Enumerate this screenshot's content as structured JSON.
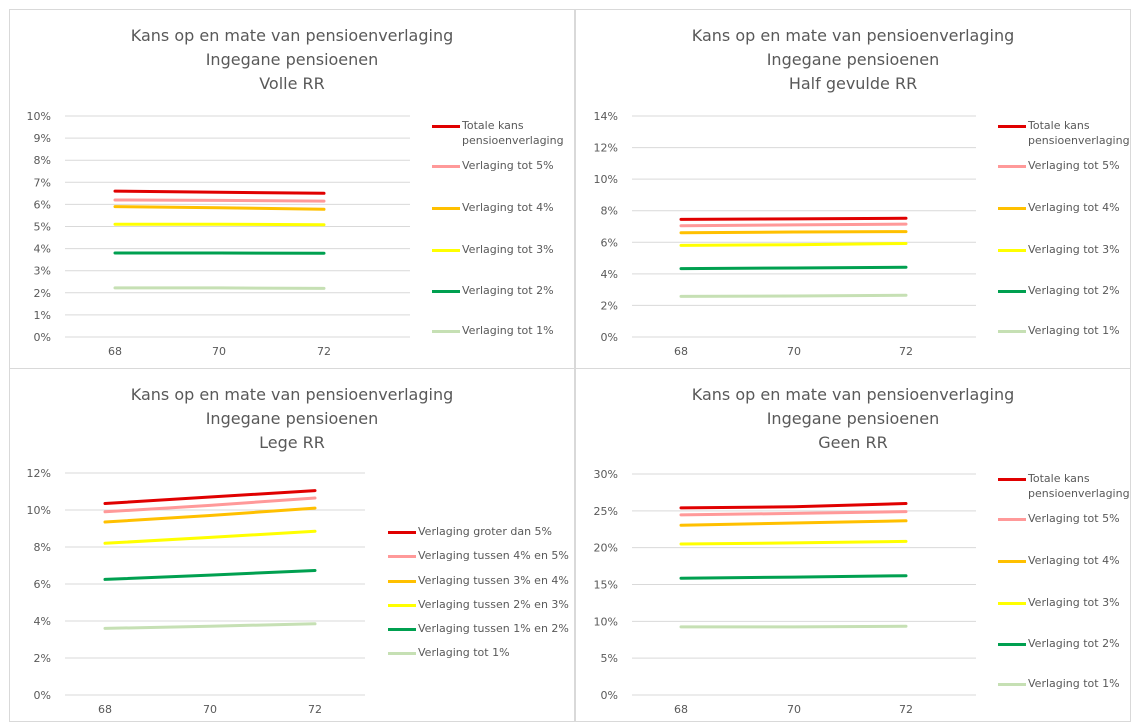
{
  "chart_data": [
    {
      "type": "line",
      "title": [
        "Kans op en mate van pensioenverlaging",
        "Ingegane pensioenen",
        "Volle RR"
      ],
      "x": [
        "68",
        "70",
        "72"
      ],
      "ylim": [
        0,
        0.1
      ],
      "yticks": [
        "0%",
        "1%",
        "2%",
        "3%",
        "4%",
        "5%",
        "6%",
        "7%",
        "8%",
        "9%",
        "10%"
      ],
      "grid": true,
      "legend": "right",
      "series": [
        {
          "name": "Totale kans pensioenverlaging",
          "color": "#e00000",
          "values": [
            0.066,
            0.0655,
            0.065
          ]
        },
        {
          "name": "Verlaging tot 5%",
          "color": "#ff9999",
          "values": [
            0.062,
            0.0618,
            0.0615
          ]
        },
        {
          "name": "Verlaging tot 4%",
          "color": "#ffc000",
          "values": [
            0.059,
            0.0585,
            0.0578
          ]
        },
        {
          "name": "Verlaging tot 3%",
          "color": "#ffff00",
          "values": [
            0.051,
            0.051,
            0.0508
          ]
        },
        {
          "name": "Verlaging tot 2%",
          "color": "#00a050",
          "values": [
            0.038,
            0.038,
            0.0379
          ]
        },
        {
          "name": "Verlaging tot 1%",
          "color": "#c6e0b4",
          "values": [
            0.0222,
            0.0222,
            0.022
          ]
        }
      ]
    },
    {
      "type": "line",
      "title": [
        "Kans op en mate van pensioenverlaging",
        "Ingegane pensioenen",
        "Half gevulde RR"
      ],
      "x": [
        "68",
        "70",
        "72"
      ],
      "ylim": [
        0,
        0.14
      ],
      "yticks": [
        "0%",
        "2%",
        "4%",
        "6%",
        "8%",
        "10%",
        "12%",
        "14%"
      ],
      "grid": true,
      "legend": "right",
      "series": [
        {
          "name": "Totale kans pensioenverlaging",
          "color": "#e00000",
          "values": [
            0.0745,
            0.0748,
            0.0752
          ]
        },
        {
          "name": "Verlaging tot 5%",
          "color": "#ff9999",
          "values": [
            0.0705,
            0.071,
            0.0715
          ]
        },
        {
          "name": "Verlaging tot 4%",
          "color": "#ffc000",
          "values": [
            0.066,
            0.0665,
            0.0668
          ]
        },
        {
          "name": "Verlaging tot 3%",
          "color": "#ffff00",
          "values": [
            0.058,
            0.0585,
            0.0592
          ]
        },
        {
          "name": "Verlaging tot 2%",
          "color": "#00a050",
          "values": [
            0.0433,
            0.0437,
            0.0442
          ]
        },
        {
          "name": "Verlaging tot 1%",
          "color": "#c6e0b4",
          "values": [
            0.0257,
            0.026,
            0.0265
          ]
        }
      ]
    },
    {
      "type": "line",
      "title": [
        "Kans op en mate van pensioenverlaging",
        "Ingegane pensioenen",
        "Lege RR"
      ],
      "x": [
        "68",
        "70",
        "72"
      ],
      "ylim": [
        0,
        0.12
      ],
      "yticks": [
        "0%",
        "2%",
        "4%",
        "6%",
        "8%",
        "10%",
        "12%"
      ],
      "grid": true,
      "legend": "right",
      "series": [
        {
          "name": "Verlaging groter dan 5%",
          "color": "#e00000",
          "values": [
            0.1035,
            0.107,
            0.1105
          ]
        },
        {
          "name": "Verlaging tussen 4% en 5%",
          "color": "#ff9999",
          "values": [
            0.099,
            0.1025,
            0.1065
          ]
        },
        {
          "name": "Verlaging tussen 3% en 4%",
          "color": "#ffc000",
          "values": [
            0.0935,
            0.097,
            0.101
          ]
        },
        {
          "name": "Verlaging tussen 2% en 3%",
          "color": "#ffff00",
          "values": [
            0.082,
            0.0852,
            0.0885
          ]
        },
        {
          "name": "Verlaging tussen 1% en 2%",
          "color": "#00a050",
          "values": [
            0.0625,
            0.0648,
            0.0673
          ]
        },
        {
          "name": "Verlaging tot 1%",
          "color": "#c6e0b4",
          "values": [
            0.036,
            0.0372,
            0.0385
          ]
        }
      ]
    },
    {
      "type": "line",
      "title": [
        "Kans op en mate van pensioenverlaging",
        "Ingegane pensioenen",
        "Geen RR"
      ],
      "x": [
        "68",
        "70",
        "72"
      ],
      "ylim": [
        0,
        0.3
      ],
      "yticks": [
        "0%",
        "5%",
        "10%",
        "15%",
        "20%",
        "25%",
        "30%"
      ],
      "grid": true,
      "legend": "right",
      "series": [
        {
          "name": "Totale kans pensioenverlaging",
          "color": "#e00000",
          "values": [
            0.254,
            0.2555,
            0.26
          ]
        },
        {
          "name": "Verlaging tot 5%",
          "color": "#ff9999",
          "values": [
            0.2445,
            0.2465,
            0.249
          ]
        },
        {
          "name": "Verlaging tot 4%",
          "color": "#ffc000",
          "values": [
            0.2305,
            0.2335,
            0.2365
          ]
        },
        {
          "name": "Verlaging tot 3%",
          "color": "#ffff00",
          "values": [
            0.205,
            0.2065,
            0.2085
          ]
        },
        {
          "name": "Verlaging tot 2%",
          "color": "#00a050",
          "values": [
            0.1585,
            0.16,
            0.162
          ]
        },
        {
          "name": "Verlaging tot 1%",
          "color": "#c6e0b4",
          "values": [
            0.0925,
            0.0925,
            0.0932
          ]
        }
      ]
    }
  ]
}
